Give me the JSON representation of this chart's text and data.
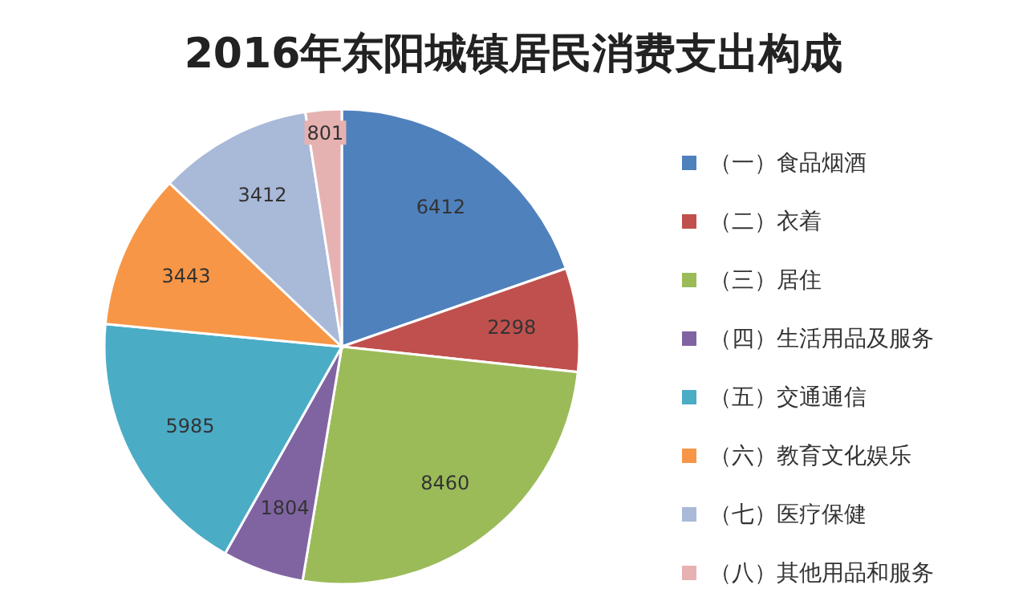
{
  "chart_data": {
    "type": "pie",
    "title": "2016年东阳城镇居民消费支出构成",
    "categories": [
      "（一）食品烟酒",
      "（二）衣着",
      "（三）居住",
      "（四）生活用品及服务",
      "（五）交通通信",
      "（六）教育文化娱乐",
      "（七）医疗保健",
      "（八）其他用品和服务"
    ],
    "values": [
      6412,
      2298,
      8460,
      1804,
      5985,
      3443,
      3412,
      801
    ],
    "colors": [
      "#4f81bd",
      "#c0504d",
      "#9bbb59",
      "#8064a2",
      "#4bacc6",
      "#f79646",
      "#a9b9d8",
      "#e6b2b1"
    ],
    "data_labels": true,
    "legend": "right"
  }
}
